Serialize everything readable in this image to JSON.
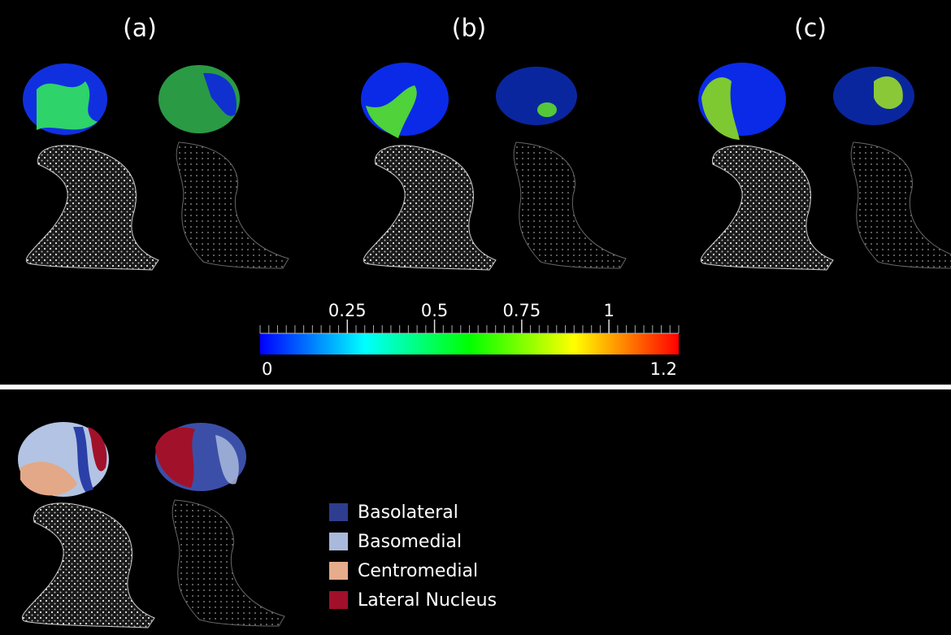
{
  "panels": {
    "labels": [
      "(a)",
      "(b)",
      "(c)"
    ]
  },
  "colorbar": {
    "min": 0,
    "max": 1.2,
    "ticks": [
      0.25,
      0.5,
      0.75,
      1
    ],
    "colors": [
      "#0000ff",
      "#00ffff",
      "#00ff00",
      "#ffff00",
      "#ff0000"
    ]
  },
  "legend": [
    {
      "label": "Basolateral",
      "color": "#2e3d8f"
    },
    {
      "label": "Basomedial",
      "color": "#a9b9dc"
    },
    {
      "label": "Centromedial",
      "color": "#e6ac8c"
    },
    {
      "label": "Lateral Nucleus",
      "color": "#a0102a"
    }
  ]
}
